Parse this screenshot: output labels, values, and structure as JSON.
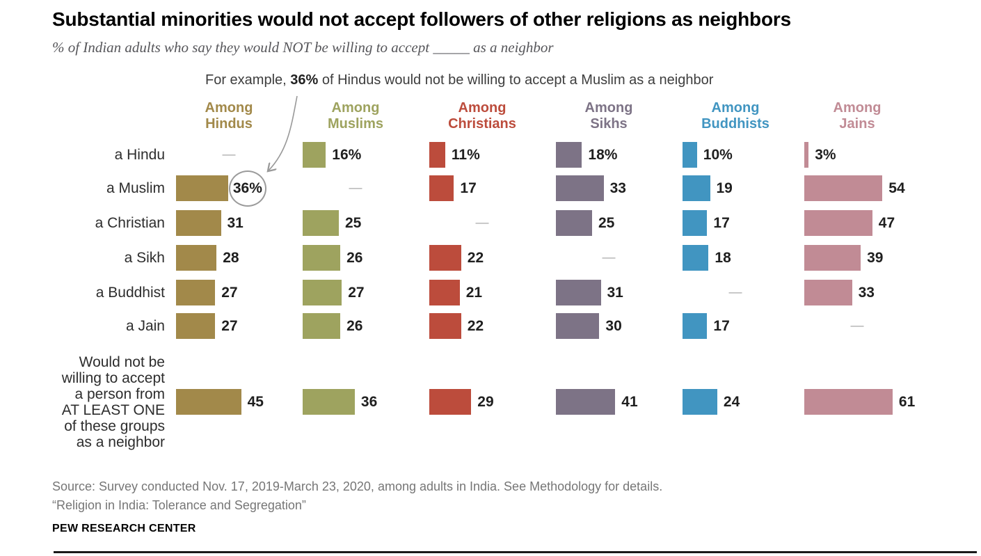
{
  "header": {
    "title": "Substantial minorities would not accept followers of other religions as neighbors",
    "subtitle": "% of Indian adults who say they would NOT be willing to accept _____ as a neighbor",
    "example_prefix": "For example, ",
    "example_value": "36%",
    "example_suffix": " of Hindus would not be willing to accept a Muslim as a neighbor"
  },
  "chart_data": {
    "type": "bar",
    "orientation": "horizontal",
    "value_unit": "percent",
    "no_data_marker": "—",
    "categories": [
      "a Hindu",
      "a Muslim",
      "a Christian",
      "a Sikh",
      "a Buddhist",
      "a Jain",
      "Would not be willing to accept a person from AT LEAST ONE of these groups as a neighbor"
    ],
    "at_least_one_label_lines": [
      "Would not be",
      "willing to accept",
      "a person from",
      "AT LEAST ONE",
      "of these groups",
      "as a neighbor"
    ],
    "series": [
      {
        "name": "Among Hindus",
        "color": "#a2894a",
        "values": [
          null,
          36,
          31,
          28,
          27,
          27,
          45
        ]
      },
      {
        "name": "Among Muslims",
        "color": "#9ea35f",
        "values": [
          16,
          null,
          25,
          26,
          27,
          26,
          36
        ]
      },
      {
        "name": "Among Christians",
        "color": "#bc4c3c",
        "values": [
          11,
          17,
          null,
          22,
          21,
          22,
          29
        ]
      },
      {
        "name": "Among Sikhs",
        "color": "#7d7386",
        "values": [
          18,
          33,
          25,
          null,
          31,
          30,
          41
        ]
      },
      {
        "name": "Among Buddhists",
        "color": "#4195c1",
        "values": [
          10,
          19,
          17,
          18,
          null,
          17,
          24
        ]
      },
      {
        "name": "Among Jains",
        "color": "#c18b95",
        "values": [
          3,
          54,
          47,
          39,
          33,
          null,
          61
        ]
      }
    ],
    "percent_suffix_rows": [
      0
    ],
    "circled_cell": {
      "series": 0,
      "row": 1,
      "display": "36%"
    },
    "legend_position": "top-column-headers",
    "grid": false,
    "xlim": [
      0,
      61
    ]
  },
  "footer": {
    "source_line1": "Source: Survey conducted Nov. 17, 2019-March 23, 2020, among adults in India. See Methodology for details.",
    "source_line2": "“Religion in India: Tolerance and Segregation”",
    "brand": "PEW RESEARCH CENTER"
  },
  "colors": {
    "dash": "#a9a9a9",
    "value_text": "#1f1f1f",
    "arrow": "#999999",
    "rule": "#1a1a1a"
  }
}
